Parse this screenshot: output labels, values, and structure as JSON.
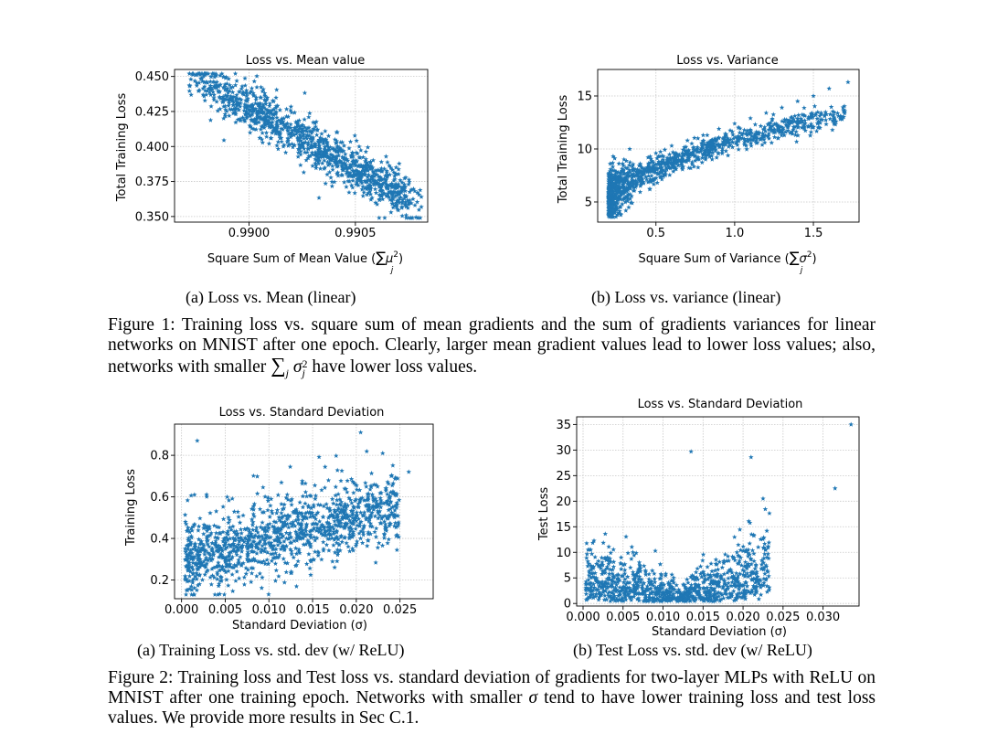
{
  "figure1": {
    "plot_a": {
      "title": "Loss vs. Mean value",
      "ylabel": "Total Training Loss",
      "xlabel_pre": "Square Sum of Mean Value (",
      "xlabel_sym": "∑",
      "xlabel_var": "μ",
      "xlabel_sup": "2",
      "xlabel_sub": "j",
      "xlabel_post": ")",
      "xticks": [
        "0.9900",
        "0.9905"
      ],
      "yticks": [
        "0.450",
        "0.425",
        "0.400",
        "0.375",
        "0.350"
      ]
    },
    "plot_b": {
      "title": "Loss vs. Variance",
      "ylabel": "Total Training Loss",
      "xlabel_pre": "Square Sum of Variance (",
      "xlabel_sym": "∑",
      "xlabel_var": "σ",
      "xlabel_sup": "2",
      "xlabel_sub": "j",
      "xlabel_post": ")",
      "xticks": [
        "0.5",
        "1.0",
        "1.5"
      ],
      "yticks": [
        "15",
        "10",
        "5"
      ]
    },
    "caption_a": "(a) Loss vs. Mean (linear)",
    "caption_b": "(b) Loss vs. variance (linear)",
    "caption_1": "Figure 1: Training loss vs. square sum of mean gradients and the sum of gradients variances for linear networks on MNIST after one epoch. Clearly, larger mean gradient values lead to lower loss",
    "caption_2": "values; also, networks with smaller ",
    "caption_sym": "∑",
    "caption_sub": "j",
    "caption_var": " σ",
    "caption_sup": "2",
    "caption_sub2": "j",
    "caption_3": " have lower loss values."
  },
  "figure2": {
    "plot_a": {
      "title": "Loss vs. Standard Deviation",
      "ylabel": "Training Loss",
      "xlabel": "Standard Deviation (σ)",
      "xticks": [
        "0.000",
        "0.005",
        "0.010",
        "0.015",
        "0.020",
        "0.025"
      ],
      "yticks": [
        "0.8",
        "0.6",
        "0.4",
        "0.2"
      ]
    },
    "plot_b": {
      "title": "Loss vs. Standard Deviation",
      "ylabel": "Test Loss",
      "xlabel": "Standard Deviation (σ)",
      "xticks": [
        "0.000",
        "0.005",
        "0.010",
        "0.015",
        "0.020",
        "0.025",
        "0.030"
      ],
      "yticks": [
        "35",
        "30",
        "25",
        "20",
        "15",
        "10",
        "5",
        "0"
      ]
    },
    "caption_a": "(a) Training Loss vs. std. dev (w/ ReLU)",
    "caption_b": "(b) Test Loss vs. std. dev (w/ ReLU)",
    "caption_1": "Figure 2: Training loss and Test loss vs. standard deviation of gradients for two-layer MLPs with ReLU on MNIST after one training epoch. Networks with smaller ",
    "caption_sigma": "σ",
    "caption_2": " tend to have lower training loss and test loss values. We provide more results in Sec C.1."
  },
  "chart_data": [
    {
      "type": "scatter",
      "title": "Loss vs. Mean value",
      "xlabel": "Square Sum of Mean Value (∑_j μ_j^2)",
      "ylabel": "Total Training Loss",
      "xlim": [
        0.98965,
        0.99084
      ],
      "ylim": [
        0.346,
        0.455
      ],
      "grid": true,
      "marker": "star",
      "color": "#1f77b4",
      "points": [
        [
          0.98975,
          0.451
        ],
        [
          0.98982,
          0.442
        ],
        [
          0.9899,
          0.436
        ],
        [
          0.98998,
          0.428
        ],
        [
          0.99005,
          0.43
        ],
        [
          0.9901,
          0.42
        ],
        [
          0.99015,
          0.418
        ],
        [
          0.9902,
          0.41
        ],
        [
          0.99025,
          0.412
        ],
        [
          0.9903,
          0.405
        ],
        [
          0.99035,
          0.402
        ],
        [
          0.9904,
          0.398
        ],
        [
          0.99045,
          0.392
        ],
        [
          0.9905,
          0.39
        ],
        [
          0.99055,
          0.385
        ],
        [
          0.9906,
          0.38
        ],
        [
          0.99065,
          0.372
        ],
        [
          0.9907,
          0.366
        ],
        [
          0.99075,
          0.36
        ],
        [
          0.99078,
          0.358
        ]
      ]
    },
    {
      "type": "scatter",
      "title": "Loss vs. Variance",
      "xlabel": "Square Sum of Variance (∑_j σ_j^2)",
      "ylabel": "Total Training Loss",
      "xlim": [
        0.13,
        1.79
      ],
      "ylim": [
        3.1,
        17.5
      ],
      "grid": true,
      "marker": "star",
      "color": "#1f77b4",
      "points": [
        [
          0.2,
          5.5
        ],
        [
          0.25,
          6.5
        ],
        [
          0.3,
          7.2
        ],
        [
          0.35,
          8.0
        ],
        [
          0.4,
          8.6
        ],
        [
          0.45,
          9.2
        ],
        [
          0.5,
          9.6
        ],
        [
          0.6,
          10.3
        ],
        [
          0.7,
          10.8
        ],
        [
          0.8,
          11.3
        ],
        [
          0.9,
          11.9
        ],
        [
          1.0,
          12.4
        ],
        [
          1.1,
          12.9
        ],
        [
          1.2,
          13.4
        ],
        [
          1.3,
          13.9
        ],
        [
          1.4,
          14.5
        ],
        [
          1.5,
          15.0
        ],
        [
          1.6,
          15.7
        ],
        [
          1.72,
          16.3
        ]
      ]
    },
    {
      "type": "scatter",
      "title": "Loss vs. Standard Deviation",
      "xlabel": "Standard Deviation (σ)",
      "ylabel": "Training Loss",
      "xlim": [
        -0.0008,
        0.0288
      ],
      "ylim": [
        0.11,
        0.95
      ],
      "grid": true,
      "marker": "star",
      "color": "#1f77b4",
      "points": [
        [
          0.0005,
          0.3
        ],
        [
          0.002,
          0.32
        ],
        [
          0.004,
          0.34
        ],
        [
          0.006,
          0.35
        ],
        [
          0.008,
          0.37
        ],
        [
          0.01,
          0.38
        ],
        [
          0.012,
          0.4
        ],
        [
          0.014,
          0.42
        ],
        [
          0.016,
          0.44
        ],
        [
          0.018,
          0.46
        ],
        [
          0.02,
          0.5
        ],
        [
          0.022,
          0.58
        ],
        [
          0.024,
          0.7
        ],
        [
          0.026,
          0.72
        ],
        [
          0.0205,
          0.91
        ],
        [
          0.0018,
          0.87
        ]
      ]
    },
    {
      "type": "scatter",
      "title": "Loss vs. Standard Deviation",
      "xlabel": "Standard Deviation (σ)",
      "ylabel": "Test Loss",
      "xlim": [
        -0.0008,
        0.0345
      ],
      "ylim": [
        -0.5,
        36.5
      ],
      "grid": true,
      "marker": "star",
      "color": "#1f77b4",
      "points": [
        [
          0.001,
          4.0
        ],
        [
          0.003,
          3.0
        ],
        [
          0.005,
          2.5
        ],
        [
          0.007,
          2.0
        ],
        [
          0.009,
          2.0
        ],
        [
          0.011,
          2.2
        ],
        [
          0.013,
          2.5
        ],
        [
          0.015,
          3.0
        ],
        [
          0.017,
          4.0
        ],
        [
          0.019,
          5.0
        ],
        [
          0.021,
          6.0
        ],
        [
          0.023,
          9.0
        ],
        [
          0.0225,
          20.5
        ],
        [
          0.0315,
          22.5
        ],
        [
          0.0335,
          35.0
        ],
        [
          0.0135,
          29.7
        ],
        [
          0.021,
          28.6
        ]
      ]
    }
  ]
}
